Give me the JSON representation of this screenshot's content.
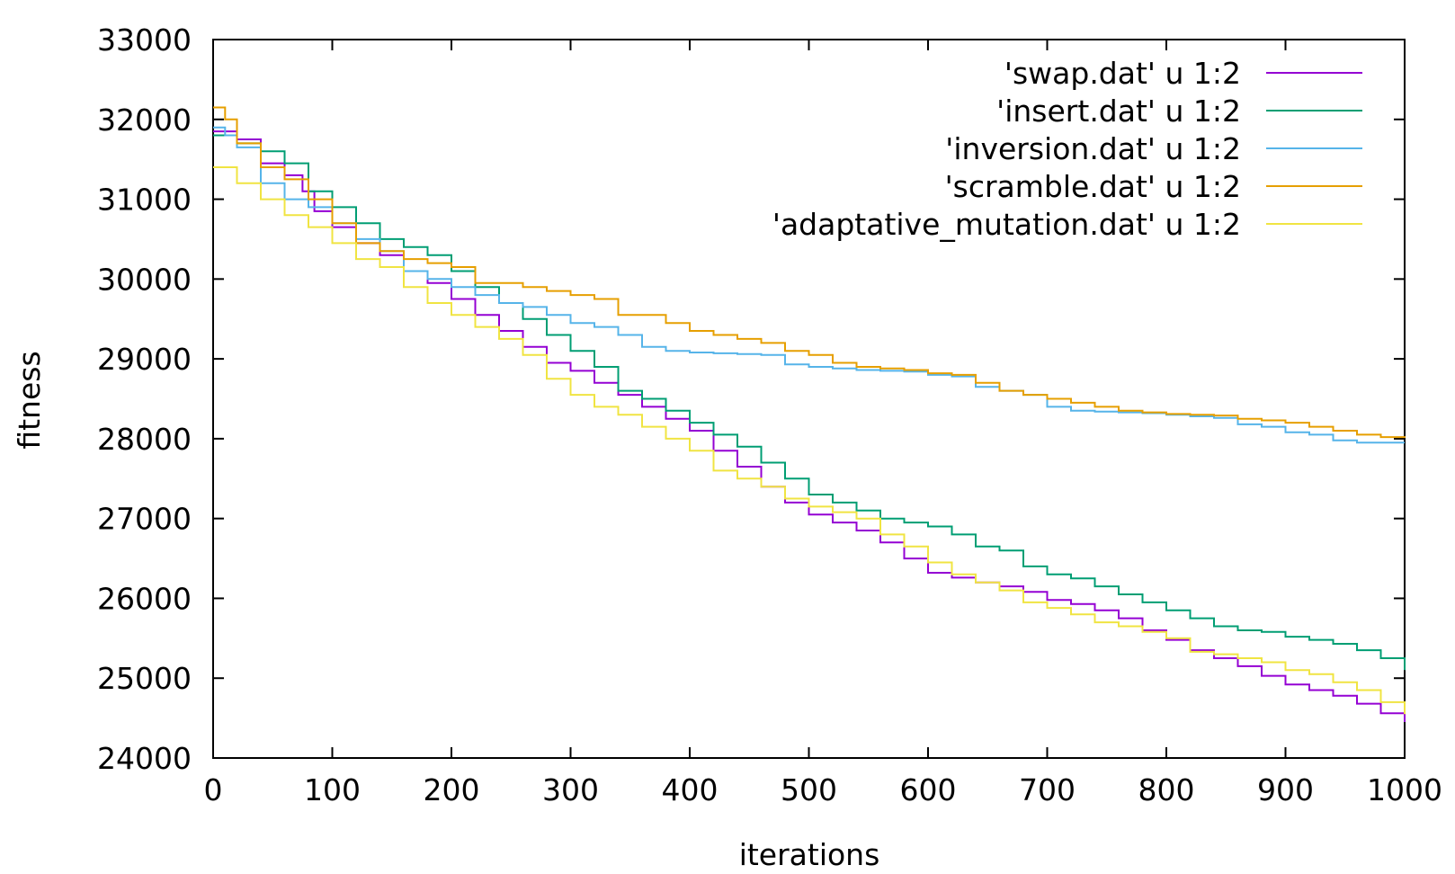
{
  "chart_data": {
    "type": "line",
    "title": "",
    "xlabel": "iterations",
    "ylabel": "fitness",
    "xlim": [
      0,
      1000
    ],
    "ylim": [
      24000,
      33000
    ],
    "x_ticks": [
      "0",
      "100",
      "200",
      "300",
      "400",
      "500",
      "600",
      "700",
      "800",
      "900",
      "1000"
    ],
    "y_ticks": [
      "24000",
      "25000",
      "26000",
      "27000",
      "28000",
      "29000",
      "30000",
      "31000",
      "32000",
      "33000"
    ],
    "grid": false,
    "legend_position": "top-right",
    "series": [
      {
        "name": "'swap.dat' u 1:2",
        "color": "#9400d3",
        "points": [
          [
            0,
            31850
          ],
          [
            20,
            31750
          ],
          [
            40,
            31450
          ],
          [
            60,
            31300
          ],
          [
            75,
            31100
          ],
          [
            85,
            30850
          ],
          [
            100,
            30650
          ],
          [
            120,
            30450
          ],
          [
            140,
            30300
          ],
          [
            160,
            30100
          ],
          [
            180,
            29950
          ],
          [
            200,
            29750
          ],
          [
            220,
            29550
          ],
          [
            240,
            29350
          ],
          [
            260,
            29150
          ],
          [
            280,
            28950
          ],
          [
            300,
            28850
          ],
          [
            320,
            28700
          ],
          [
            340,
            28550
          ],
          [
            360,
            28400
          ],
          [
            380,
            28250
          ],
          [
            400,
            28100
          ],
          [
            420,
            27850
          ],
          [
            440,
            27650
          ],
          [
            460,
            27400
          ],
          [
            480,
            27200
          ],
          [
            500,
            27050
          ],
          [
            520,
            26950
          ],
          [
            540,
            26850
          ],
          [
            560,
            26700
          ],
          [
            580,
            26500
          ],
          [
            600,
            26320
          ],
          [
            620,
            26260
          ],
          [
            640,
            26200
          ],
          [
            660,
            26150
          ],
          [
            680,
            26080
          ],
          [
            700,
            25980
          ],
          [
            720,
            25930
          ],
          [
            740,
            25850
          ],
          [
            760,
            25750
          ],
          [
            780,
            25600
          ],
          [
            800,
            25480
          ],
          [
            820,
            25350
          ],
          [
            840,
            25250
          ],
          [
            860,
            25150
          ],
          [
            880,
            25030
          ],
          [
            900,
            24920
          ],
          [
            920,
            24850
          ],
          [
            940,
            24780
          ],
          [
            960,
            24680
          ],
          [
            980,
            24560
          ],
          [
            1000,
            24450
          ]
        ]
      },
      {
        "name": "'insert.dat' u 1:2",
        "color": "#009e73",
        "points": [
          [
            0,
            31800
          ],
          [
            20,
            31700
          ],
          [
            40,
            31600
          ],
          [
            60,
            31450
          ],
          [
            80,
            31100
          ],
          [
            100,
            30900
          ],
          [
            120,
            30700
          ],
          [
            140,
            30500
          ],
          [
            160,
            30400
          ],
          [
            180,
            30300
          ],
          [
            200,
            30100
          ],
          [
            220,
            29900
          ],
          [
            240,
            29700
          ],
          [
            260,
            29500
          ],
          [
            280,
            29300
          ],
          [
            300,
            29100
          ],
          [
            320,
            28900
          ],
          [
            340,
            28600
          ],
          [
            360,
            28500
          ],
          [
            380,
            28350
          ],
          [
            400,
            28200
          ],
          [
            420,
            28050
          ],
          [
            440,
            27900
          ],
          [
            460,
            27700
          ],
          [
            480,
            27500
          ],
          [
            500,
            27300
          ],
          [
            520,
            27200
          ],
          [
            540,
            27100
          ],
          [
            560,
            27000
          ],
          [
            580,
            26950
          ],
          [
            600,
            26900
          ],
          [
            620,
            26800
          ],
          [
            640,
            26650
          ],
          [
            660,
            26600
          ],
          [
            680,
            26400
          ],
          [
            700,
            26300
          ],
          [
            720,
            26250
          ],
          [
            740,
            26150
          ],
          [
            760,
            26050
          ],
          [
            780,
            25950
          ],
          [
            800,
            25850
          ],
          [
            820,
            25750
          ],
          [
            840,
            25650
          ],
          [
            860,
            25600
          ],
          [
            880,
            25580
          ],
          [
            900,
            25520
          ],
          [
            920,
            25480
          ],
          [
            940,
            25430
          ],
          [
            960,
            25350
          ],
          [
            980,
            25250
          ],
          [
            1000,
            25100
          ]
        ]
      },
      {
        "name": "'inversion.dat' u 1:2",
        "color": "#56b4e9",
        "points": [
          [
            0,
            31900
          ],
          [
            10,
            31800
          ],
          [
            20,
            31650
          ],
          [
            40,
            31200
          ],
          [
            60,
            31000
          ],
          [
            80,
            30900
          ],
          [
            100,
            30700
          ],
          [
            120,
            30500
          ],
          [
            140,
            30350
          ],
          [
            160,
            30100
          ],
          [
            180,
            30000
          ],
          [
            200,
            29900
          ],
          [
            220,
            29800
          ],
          [
            240,
            29700
          ],
          [
            260,
            29650
          ],
          [
            280,
            29550
          ],
          [
            300,
            29450
          ],
          [
            320,
            29400
          ],
          [
            340,
            29300
          ],
          [
            360,
            29150
          ],
          [
            380,
            29100
          ],
          [
            400,
            29080
          ],
          [
            420,
            29070
          ],
          [
            440,
            29060
          ],
          [
            460,
            29050
          ],
          [
            480,
            28930
          ],
          [
            500,
            28900
          ],
          [
            520,
            28880
          ],
          [
            540,
            28860
          ],
          [
            560,
            28850
          ],
          [
            580,
            28840
          ],
          [
            600,
            28800
          ],
          [
            620,
            28780
          ],
          [
            640,
            28650
          ],
          [
            660,
            28600
          ],
          [
            680,
            28550
          ],
          [
            700,
            28400
          ],
          [
            720,
            28350
          ],
          [
            740,
            28340
          ],
          [
            760,
            28330
          ],
          [
            780,
            28320
          ],
          [
            800,
            28300
          ],
          [
            820,
            28280
          ],
          [
            840,
            28260
          ],
          [
            860,
            28180
          ],
          [
            880,
            28150
          ],
          [
            900,
            28080
          ],
          [
            920,
            28050
          ],
          [
            940,
            27980
          ],
          [
            960,
            27950
          ],
          [
            980,
            27950
          ],
          [
            1000,
            27950
          ]
        ]
      },
      {
        "name": "'scramble.dat' u 1:2",
        "color": "#e69f00",
        "points": [
          [
            0,
            32150
          ],
          [
            10,
            32000
          ],
          [
            20,
            31700
          ],
          [
            40,
            31400
          ],
          [
            60,
            31250
          ],
          [
            80,
            31000
          ],
          [
            100,
            30700
          ],
          [
            120,
            30450
          ],
          [
            140,
            30350
          ],
          [
            160,
            30250
          ],
          [
            180,
            30200
          ],
          [
            200,
            30150
          ],
          [
            220,
            29950
          ],
          [
            240,
            29950
          ],
          [
            260,
            29900
          ],
          [
            280,
            29850
          ],
          [
            300,
            29800
          ],
          [
            320,
            29750
          ],
          [
            340,
            29550
          ],
          [
            360,
            29550
          ],
          [
            380,
            29450
          ],
          [
            400,
            29350
          ],
          [
            420,
            29300
          ],
          [
            440,
            29250
          ],
          [
            460,
            29200
          ],
          [
            480,
            29100
          ],
          [
            500,
            29050
          ],
          [
            520,
            28950
          ],
          [
            540,
            28900
          ],
          [
            560,
            28880
          ],
          [
            580,
            28860
          ],
          [
            600,
            28820
          ],
          [
            620,
            28800
          ],
          [
            640,
            28700
          ],
          [
            660,
            28600
          ],
          [
            680,
            28550
          ],
          [
            700,
            28500
          ],
          [
            720,
            28450
          ],
          [
            740,
            28400
          ],
          [
            760,
            28350
          ],
          [
            780,
            28330
          ],
          [
            800,
            28310
          ],
          [
            820,
            28300
          ],
          [
            840,
            28290
          ],
          [
            860,
            28250
          ],
          [
            880,
            28230
          ],
          [
            900,
            28200
          ],
          [
            920,
            28150
          ],
          [
            940,
            28100
          ],
          [
            960,
            28050
          ],
          [
            980,
            28020
          ],
          [
            1000,
            28010
          ]
        ]
      },
      {
        "name": "'adaptative_mutation.dat' u 1:2",
        "color": "#f0e442",
        "points": [
          [
            0,
            31400
          ],
          [
            20,
            31200
          ],
          [
            40,
            31000
          ],
          [
            60,
            30800
          ],
          [
            80,
            30650
          ],
          [
            100,
            30450
          ],
          [
            120,
            30250
          ],
          [
            140,
            30150
          ],
          [
            160,
            29900
          ],
          [
            180,
            29700
          ],
          [
            200,
            29550
          ],
          [
            220,
            29400
          ],
          [
            240,
            29250
          ],
          [
            260,
            29050
          ],
          [
            280,
            28750
          ],
          [
            300,
            28550
          ],
          [
            320,
            28400
          ],
          [
            340,
            28300
          ],
          [
            360,
            28150
          ],
          [
            380,
            28000
          ],
          [
            400,
            27850
          ],
          [
            420,
            27600
          ],
          [
            440,
            27500
          ],
          [
            460,
            27400
          ],
          [
            480,
            27250
          ],
          [
            500,
            27150
          ],
          [
            520,
            27080
          ],
          [
            540,
            27000
          ],
          [
            560,
            26800
          ],
          [
            580,
            26650
          ],
          [
            600,
            26450
          ],
          [
            620,
            26300
          ],
          [
            640,
            26200
          ],
          [
            660,
            26100
          ],
          [
            680,
            25950
          ],
          [
            700,
            25880
          ],
          [
            720,
            25800
          ],
          [
            740,
            25700
          ],
          [
            760,
            25650
          ],
          [
            780,
            25580
          ],
          [
            800,
            25500
          ],
          [
            820,
            25330
          ],
          [
            840,
            25300
          ],
          [
            860,
            25250
          ],
          [
            880,
            25200
          ],
          [
            900,
            25100
          ],
          [
            920,
            25050
          ],
          [
            940,
            24950
          ],
          [
            960,
            24850
          ],
          [
            980,
            24700
          ],
          [
            1000,
            24550
          ]
        ]
      }
    ]
  }
}
